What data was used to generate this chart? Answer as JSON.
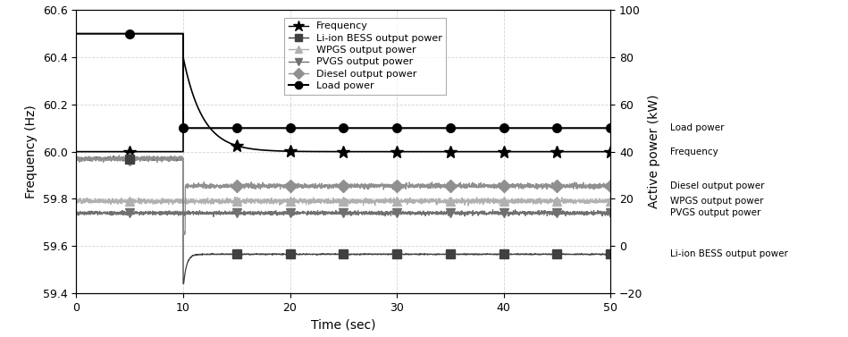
{
  "xlabel": "Time (sec)",
  "ylabel_left": "Frequency (Hz)",
  "ylabel_right": "Active power (kW)",
  "xlim": [
    0,
    50
  ],
  "ylim_left": [
    59.4,
    60.6
  ],
  "ylim_right": [
    -20,
    100
  ],
  "yticks_left": [
    59.4,
    59.6,
    59.8,
    60.0,
    60.2,
    60.4,
    60.6
  ],
  "yticks_right": [
    -20,
    0,
    20,
    40,
    60,
    80,
    100
  ],
  "xticks": [
    0,
    10,
    20,
    30,
    40,
    50
  ],
  "color_freq": "#000000",
  "color_bess": "#404040",
  "color_wpgs": "#b0b0b0",
  "color_pvgs": "#707070",
  "color_diesel": "#909090",
  "color_load": "#000000",
  "label_freq": "Frequency",
  "label_bess": "Li-ion BESS output power",
  "label_wpgs": "WPGS output power",
  "label_pvgs": "PVGS output power",
  "label_diesel": "Diesel output power",
  "label_load": "Load power",
  "freq_before": 60.0,
  "freq_spike": 60.4,
  "freq_steady": 60.0,
  "load_before": 60.5,
  "load_after": 60.1,
  "bess_before": 59.97,
  "bess_dip": 59.44,
  "bess_steady": 59.565,
  "wpgs_level": 59.79,
  "pvgs_level": 59.74,
  "diesel_before": 59.97,
  "diesel_dip": 59.655,
  "diesel_steady": 59.855,
  "figsize": [
    9.49,
    3.77
  ],
  "dpi": 100
}
